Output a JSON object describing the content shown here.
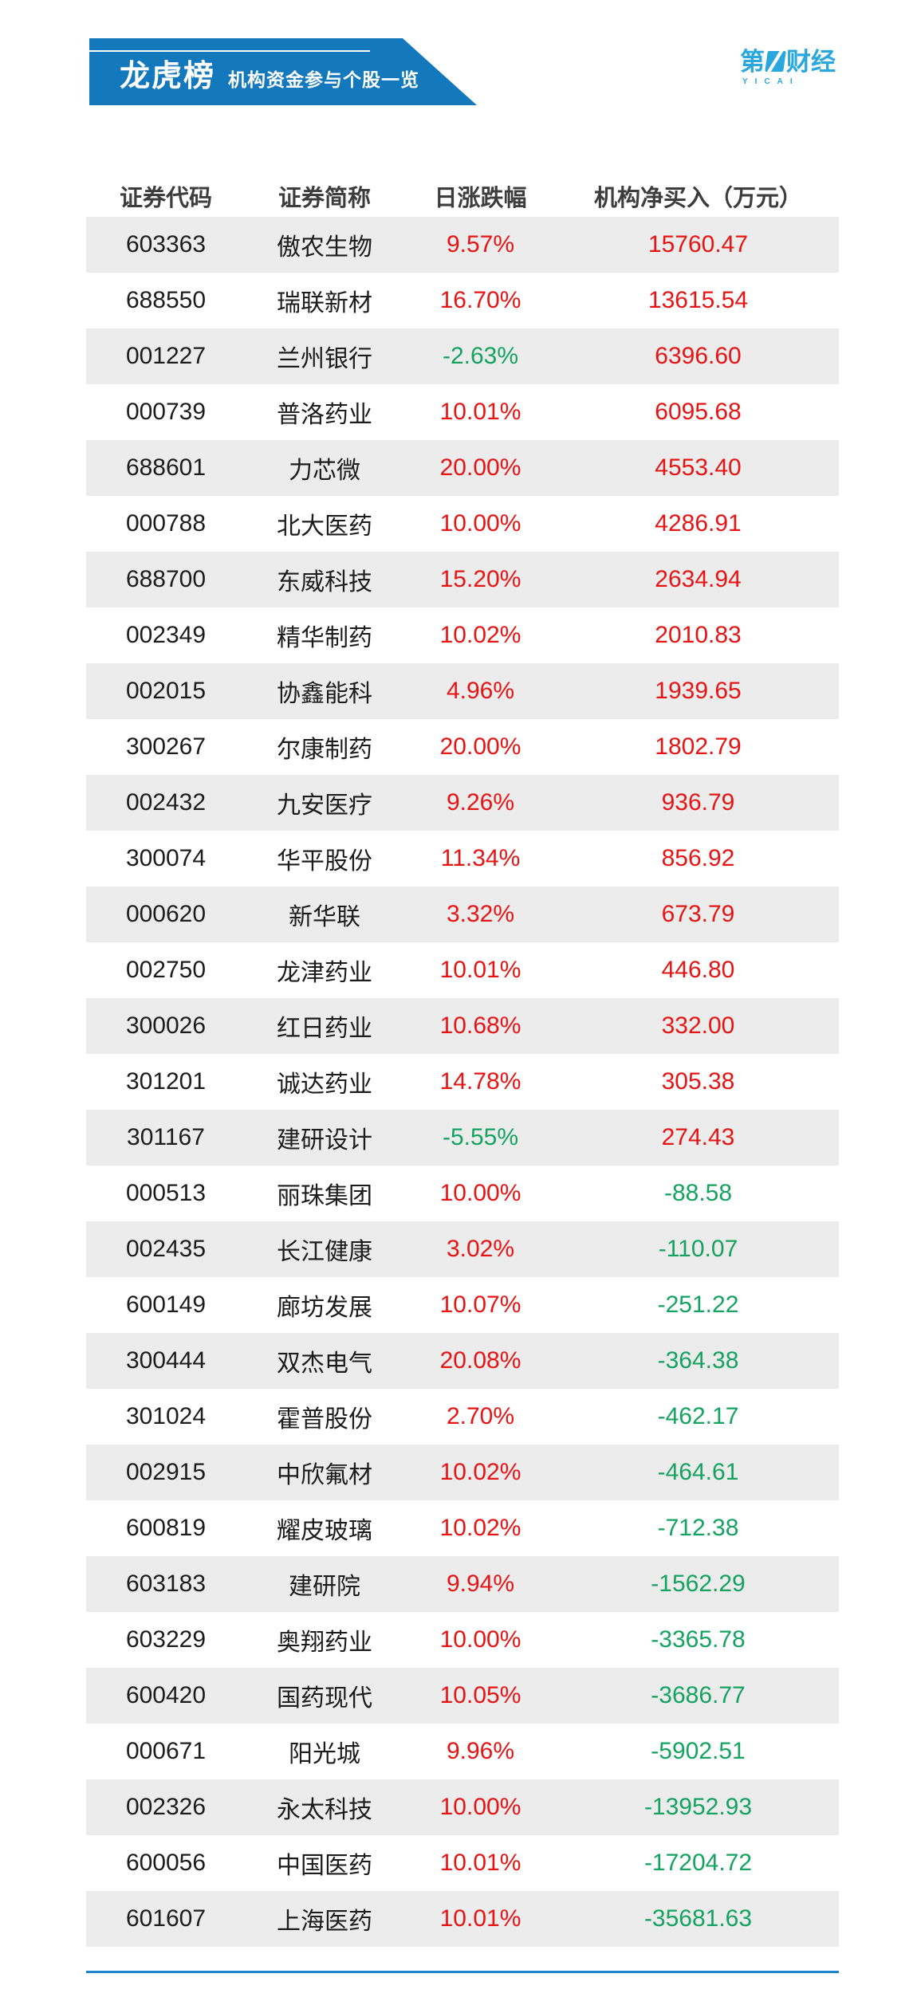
{
  "banner": {
    "title": "龙虎榜",
    "subtitle": "机构资金参与个股一览"
  },
  "logo": {
    "char_before": "第",
    "one_glyph": "stylized-one-icon",
    "chars_after": "财经",
    "latin": "YICAI"
  },
  "colors": {
    "banner_blue": "#1478bd",
    "logo_blue": "#2aa7dd",
    "up_red": "#e81414",
    "down_green": "#14a361",
    "row_stripe": "#ececec",
    "line_blue": "#1e86cc"
  },
  "chart_data": {
    "type": "table",
    "title": "龙虎榜",
    "subtitle": "机构资金参与个股一览",
    "columns": [
      "证券代码",
      "证券简称",
      "日涨跌幅",
      "机构净买入（万元）"
    ],
    "rows": [
      [
        "603363",
        "傲农生物",
        "9.57%",
        "15760.47"
      ],
      [
        "688550",
        "瑞联新材",
        "16.70%",
        "13615.54"
      ],
      [
        "001227",
        "兰州银行",
        "-2.63%",
        "6396.60"
      ],
      [
        "000739",
        "普洛药业",
        "10.01%",
        "6095.68"
      ],
      [
        "688601",
        "力芯微",
        "20.00%",
        "4553.40"
      ],
      [
        "000788",
        "北大医药",
        "10.00%",
        "4286.91"
      ],
      [
        "688700",
        "东威科技",
        "15.20%",
        "2634.94"
      ],
      [
        "002349",
        "精华制药",
        "10.02%",
        "2010.83"
      ],
      [
        "002015",
        "协鑫能科",
        "4.96%",
        "1939.65"
      ],
      [
        "300267",
        "尔康制药",
        "20.00%",
        "1802.79"
      ],
      [
        "002432",
        "九安医疗",
        "9.26%",
        "936.79"
      ],
      [
        "300074",
        "华平股份",
        "11.34%",
        "856.92"
      ],
      [
        "000620",
        "新华联",
        "3.32%",
        "673.79"
      ],
      [
        "002750",
        "龙津药业",
        "10.01%",
        "446.80"
      ],
      [
        "300026",
        "红日药业",
        "10.68%",
        "332.00"
      ],
      [
        "301201",
        "诚达药业",
        "14.78%",
        "305.38"
      ],
      [
        "301167",
        "建研设计",
        "-5.55%",
        "274.43"
      ],
      [
        "000513",
        "丽珠集团",
        "10.00%",
        "-88.58"
      ],
      [
        "002435",
        "长江健康",
        "3.02%",
        "-110.07"
      ],
      [
        "600149",
        "廊坊发展",
        "10.07%",
        "-251.22"
      ],
      [
        "300444",
        "双杰电气",
        "20.08%",
        "-364.38"
      ],
      [
        "301024",
        "霍普股份",
        "2.70%",
        "-462.17"
      ],
      [
        "002915",
        "中欣氟材",
        "10.02%",
        "-464.61"
      ],
      [
        "600819",
        "耀皮玻璃",
        "10.02%",
        "-712.38"
      ],
      [
        "603183",
        "建研院",
        "9.94%",
        "-1562.29"
      ],
      [
        "603229",
        "奥翔药业",
        "10.00%",
        "-3365.78"
      ],
      [
        "600420",
        "国药现代",
        "10.05%",
        "-3686.77"
      ],
      [
        "000671",
        "阳光城",
        "9.96%",
        "-5902.51"
      ],
      [
        "002326",
        "永太科技",
        "10.00%",
        "-13952.93"
      ],
      [
        "600056",
        "中国医药",
        "10.01%",
        "-17204.72"
      ],
      [
        "601607",
        "上海医药",
        "10.01%",
        "-35681.63"
      ]
    ]
  }
}
